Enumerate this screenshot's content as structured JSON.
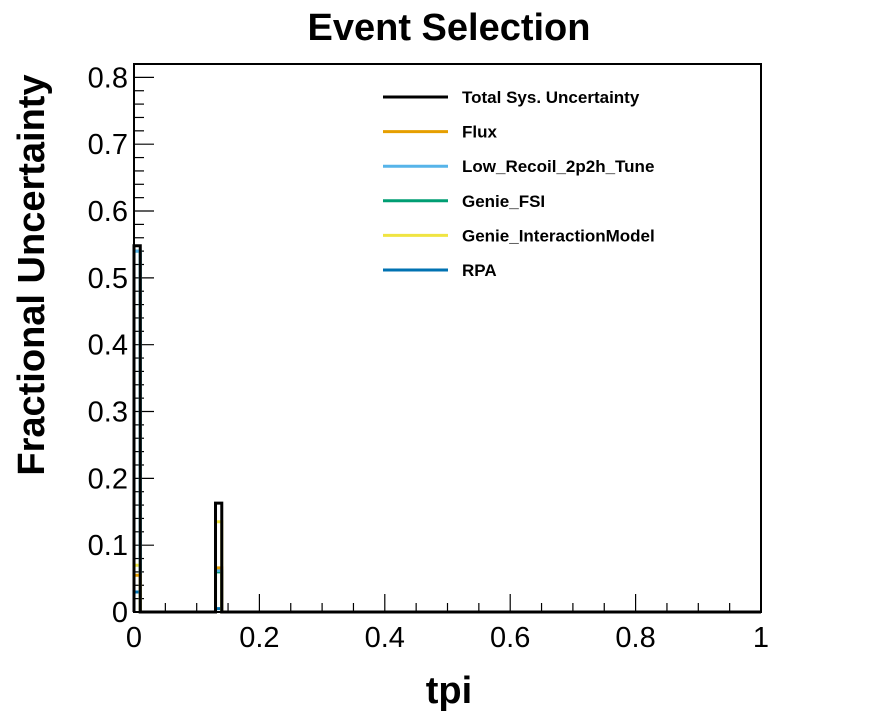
{
  "chart_data": {
    "type": "line",
    "title": "Event Selection",
    "xlabel": "tpi",
    "ylabel": "Fractional Uncertainty",
    "xlim": [
      0,
      1
    ],
    "ylim": [
      0,
      0.82
    ],
    "x_ticks": [
      "0",
      "0.2",
      "0.4",
      "0.6",
      "0.8",
      "1"
    ],
    "y_ticks": [
      "0",
      "0.1",
      "0.2",
      "0.3",
      "0.4",
      "0.5",
      "0.6",
      "0.7",
      "0.8"
    ],
    "legend_position": "top-right",
    "bin_width": 0.01,
    "series": [
      {
        "name": "Total Sys. Uncertainty",
        "color": "#000000",
        "bins": [
          {
            "x": 0.0,
            "y": 0.548
          },
          {
            "x": 0.13,
            "y": 0.163
          }
        ]
      },
      {
        "name": "Flux",
        "color": "#E69F00",
        "bins": [
          {
            "x": 0.0,
            "y": 0.055
          },
          {
            "x": 0.13,
            "y": 0.066
          }
        ]
      },
      {
        "name": "Low_Recoil_2p2h_Tune",
        "color": "#56B4E9",
        "bins": [
          {
            "x": 0.0,
            "y": 0.54
          },
          {
            "x": 0.13,
            "y": 0.062
          }
        ]
      },
      {
        "name": "Genie_FSI",
        "color": "#009E73",
        "bins": [
          {
            "x": 0.0,
            "y": 0.54
          },
          {
            "x": 0.13,
            "y": 0.06
          }
        ]
      },
      {
        "name": "Genie_InteractionModel",
        "color": "#F0E442",
        "bins": [
          {
            "x": 0.0,
            "y": 0.07
          },
          {
            "x": 0.13,
            "y": 0.135
          }
        ]
      },
      {
        "name": "RPA",
        "color": "#0072B2",
        "bins": [
          {
            "x": 0.0,
            "y": 0.03
          },
          {
            "x": 0.13,
            "y": 0.005
          }
        ]
      }
    ]
  }
}
